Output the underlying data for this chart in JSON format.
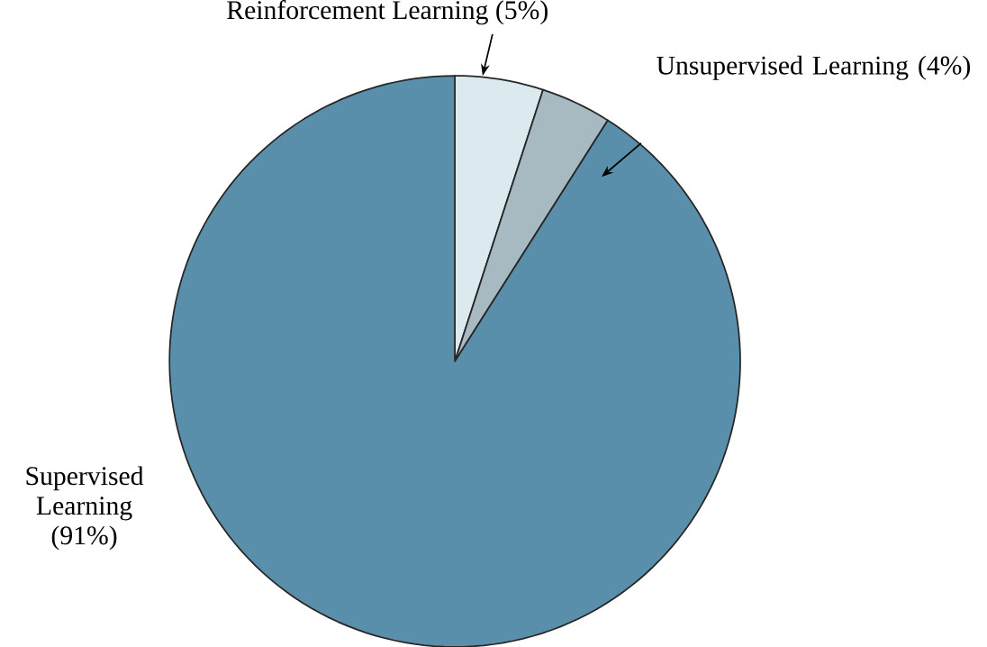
{
  "chart_data": {
    "type": "pie",
    "categories": [
      "Reinforcement Learning (5%)",
      "Unsupervised Learning (4%)",
      "Supervised Learning (91%)"
    ],
    "values": [
      5,
      4,
      91
    ],
    "colors": [
      "#dce9ef",
      "#a7b9c1",
      "#5a8fab"
    ]
  }
}
